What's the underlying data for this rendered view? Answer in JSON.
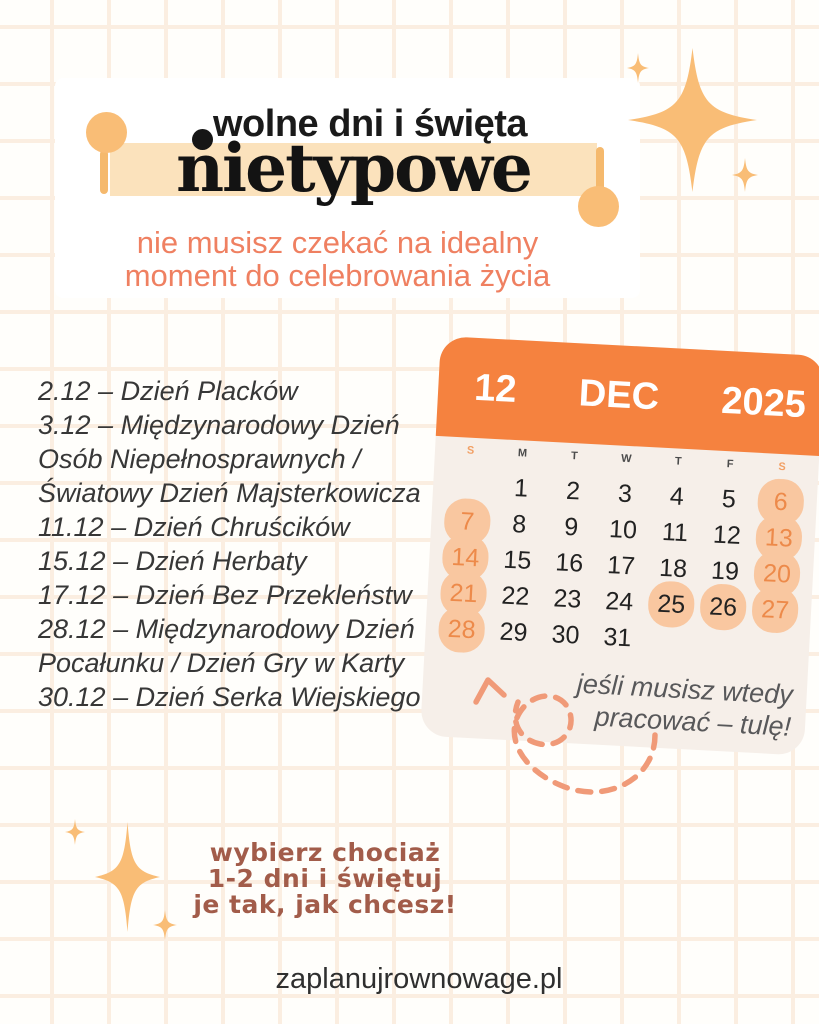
{
  "title": {
    "kicker": "wolne dni i święta",
    "headline": "nietypowe",
    "subtitle_lines": [
      "nie musisz czekać na idealny",
      "moment do celebrowania życia"
    ]
  },
  "holidays": [
    "2.12 – Dzień Placków",
    "3.12 – Międzynarodowy Dzień Osób Niepełnosprawnych / Światowy Dzień Majsterkowicza",
    "11.12 – Dzień Chruścików",
    "15.12 – Dzień Herbaty",
    "17.12 – Dzień Bez Przekleństw",
    "28.12 – Międzynarodowy Dzień Pocałunku / Dzień Gry w Karty",
    "30.12 – Dzień Serka Wiejskiego"
  ],
  "calendar": {
    "month_number": "12",
    "month_name": "DEC",
    "year": "2025",
    "weekday_headers": [
      "S",
      "M",
      "T",
      "W",
      "T",
      "F",
      "S"
    ],
    "weeks": [
      [
        null,
        1,
        2,
        3,
        4,
        5,
        6
      ],
      [
        7,
        8,
        9,
        10,
        11,
        12,
        13
      ],
      [
        14,
        15,
        16,
        17,
        18,
        19,
        20
      ],
      [
        21,
        22,
        23,
        24,
        25,
        26,
        27
      ],
      [
        28,
        29,
        30,
        31,
        null,
        null,
        null
      ]
    ],
    "weekend_highlight_days": [
      6,
      7,
      13,
      14,
      20,
      21,
      27,
      28
    ],
    "holiday_highlight_days": [
      25,
      26
    ],
    "note_lines": [
      "jeśli musisz wtedy",
      "pracować – tulę!"
    ]
  },
  "cta_lines": [
    "wybierz chociaż",
    "1-2 dni i świętuj",
    "je tak, jak chcesz!"
  ],
  "footer": {
    "website": "zaplanujrownowage.pl"
  },
  "colors": {
    "calendar_header": "#f5823f",
    "highlight_bar": "#fbe2bc",
    "accent_sparkle": "#f9bd76",
    "day_circle": "#f9c7a0",
    "weekend_number": "#ed8a4a",
    "subtitle": "#ef8061",
    "cta_text": "#a25c4a",
    "arrow": "#f09a78",
    "card_background": "#f6efe9"
  }
}
